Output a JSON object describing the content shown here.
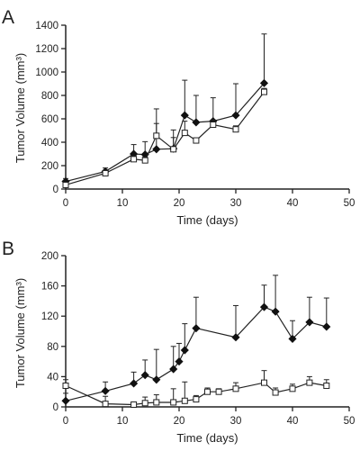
{
  "chart_data": [
    {
      "panel_label": "A",
      "type": "line",
      "xlabel": "Time (days)",
      "ylabel": "Tumor Volume (mm³)",
      "xlim": [
        0,
        50
      ],
      "ylim": [
        0,
        1400
      ],
      "xticks": [
        0,
        10,
        20,
        30,
        40,
        50
      ],
      "yticks": [
        0,
        200,
        400,
        600,
        800,
        1000,
        1200,
        1400
      ],
      "series": [
        {
          "marker": "diamond-filled",
          "x": [
            0,
            7,
            12,
            14,
            16,
            19,
            21,
            23,
            26,
            30,
            35
          ],
          "y": [
            65,
            150,
            300,
            295,
            340,
            345,
            630,
            570,
            580,
            630,
            905
          ],
          "err": [
            25,
            30,
            80,
            110,
            220,
            160,
            300,
            230,
            200,
            270,
            420
          ]
        },
        {
          "marker": "square-open",
          "x": [
            0,
            7,
            12,
            14,
            16,
            19,
            21,
            23,
            26,
            30,
            35
          ],
          "y": [
            35,
            135,
            255,
            245,
            455,
            340,
            480,
            415,
            550,
            510,
            830
          ],
          "err": [
            20,
            25,
            30,
            30,
            230,
            100,
            100,
            20,
            40,
            30,
            30
          ]
        }
      ]
    },
    {
      "panel_label": "B",
      "type": "line",
      "xlabel": "Time (days)",
      "ylabel": "Tumor Volume (mm³)",
      "xlim": [
        0,
        50
      ],
      "ylim": [
        0,
        200
      ],
      "xticks": [
        0,
        10,
        20,
        30,
        40,
        50
      ],
      "yticks": [
        0,
        40,
        80,
        120,
        160,
        200
      ],
      "series": [
        {
          "marker": "diamond-filled",
          "x": [
            0,
            7,
            12,
            14,
            16,
            19,
            20,
            21,
            23,
            30,
            35,
            37,
            40,
            43,
            46
          ],
          "y": [
            8,
            21,
            31,
            42,
            36,
            50,
            60,
            75,
            104,
            92,
            132,
            126,
            90,
            112,
            106
          ],
          "err": [
            10,
            12,
            15,
            20,
            40,
            30,
            24,
            35,
            41,
            42,
            29,
            48,
            24,
            33,
            38
          ]
        },
        {
          "marker": "square-open",
          "x": [
            0,
            7,
            12,
            14,
            16,
            19,
            21,
            23,
            25,
            27,
            30,
            35,
            37,
            40,
            43,
            46
          ],
          "y": [
            28,
            4,
            3,
            5,
            6,
            6,
            8,
            10,
            20,
            20,
            24,
            32,
            19,
            24,
            32,
            28
          ],
          "err": [
            8,
            10,
            3,
            8,
            10,
            18,
            25,
            5,
            5,
            4,
            8,
            16,
            6,
            6,
            8,
            8
          ]
        }
      ]
    }
  ]
}
